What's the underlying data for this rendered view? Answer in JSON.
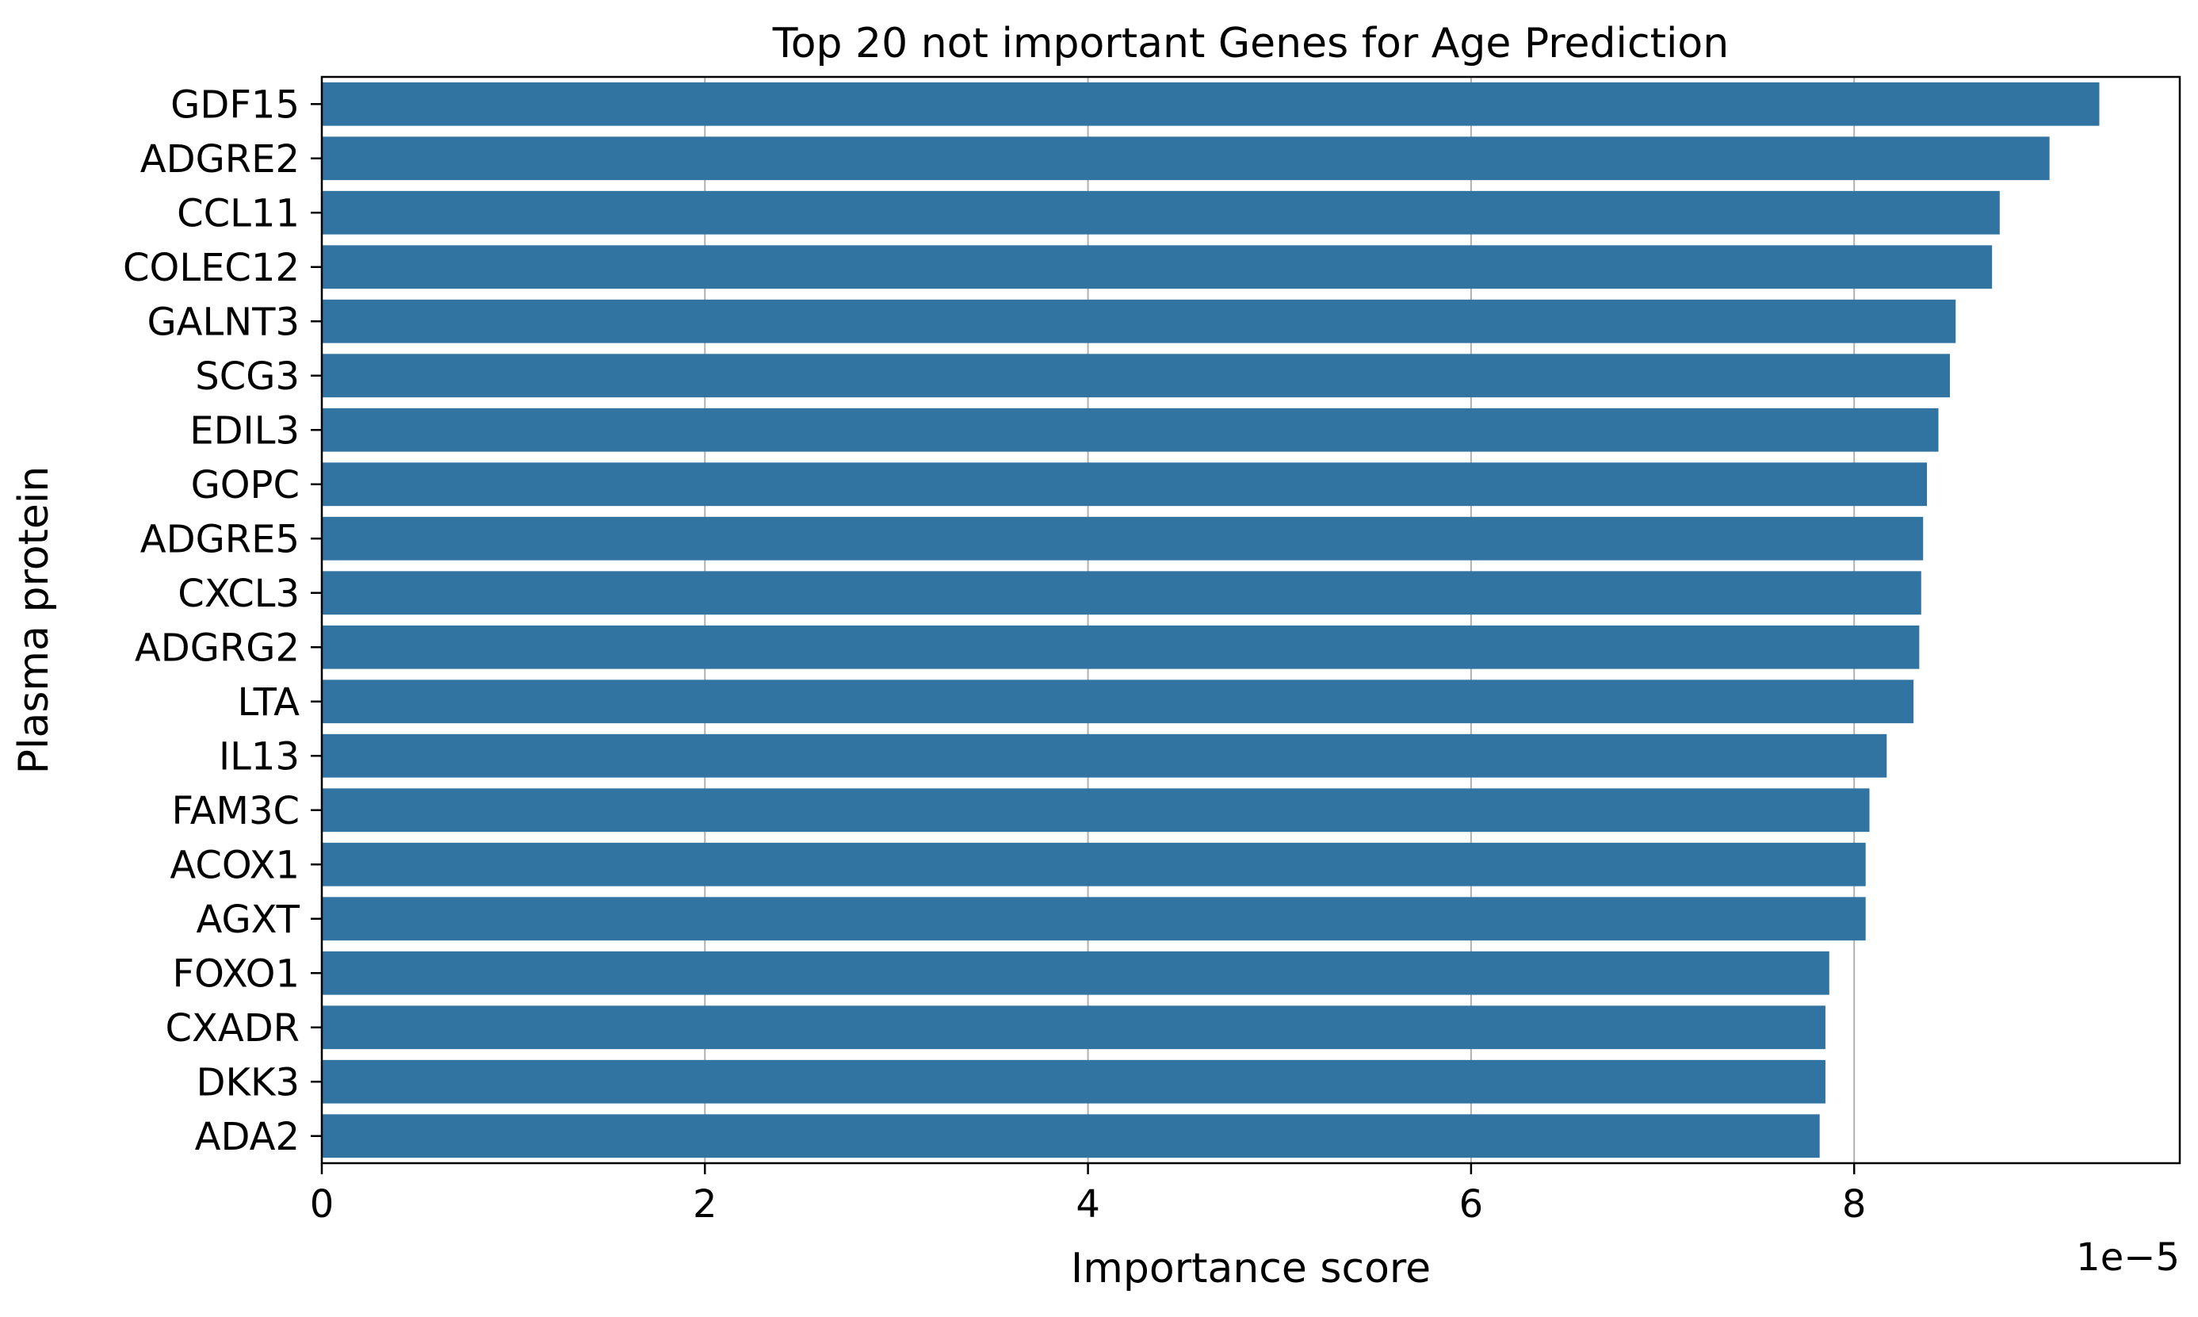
{
  "chart_data": {
    "type": "bar",
    "orientation": "horizontal",
    "title": "Top 20 not important Genes for Age Prediction",
    "xlabel": "Importance score",
    "ylabel": "Plasma protein",
    "x_offset_label": "1e−5",
    "x_scale": 1e-05,
    "xlim": [
      0,
      9.7
    ],
    "xticks": [
      0,
      2,
      4,
      6,
      8
    ],
    "xtick_labels": [
      "0",
      "2",
      "4",
      "6",
      "8"
    ],
    "grid": "x",
    "bar_color": "#3274a1",
    "categories": [
      "GDF15",
      "ADGRE2",
      "CCL11",
      "COLEC12",
      "GALNT3",
      "SCG3",
      "EDIL3",
      "GOPC",
      "ADGRE5",
      "CXCL3",
      "ADGRG2",
      "LTA",
      "IL13",
      "FAM3C",
      "ACOX1",
      "AGXT",
      "FOXO1",
      "CXADR",
      "DKK3",
      "ADA2"
    ],
    "values": [
      9.28,
      9.02,
      8.76,
      8.72,
      8.53,
      8.5,
      8.44,
      8.38,
      8.36,
      8.35,
      8.34,
      8.31,
      8.17,
      8.08,
      8.06,
      8.06,
      7.87,
      7.85,
      7.85,
      7.82
    ]
  }
}
